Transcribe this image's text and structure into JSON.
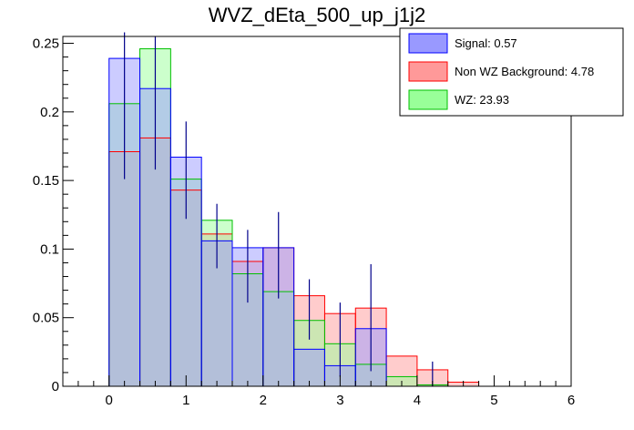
{
  "chart_data": {
    "type": "bar",
    "title": "WVZ_dEta_500_up_j1j2",
    "xlabel": "",
    "ylabel": "",
    "xlim": [
      -0.6,
      6.0
    ],
    "ylim": [
      0,
      0.255
    ],
    "bin_edges": [
      0,
      0.4,
      0.8,
      1.2,
      1.6,
      2.0,
      2.4,
      2.8,
      3.2,
      3.6,
      4.0,
      4.4,
      4.8
    ],
    "x_ticks": [
      0,
      1,
      2,
      3,
      4,
      5,
      6
    ],
    "x_tick_labels": [
      "0",
      "1",
      "2",
      "3",
      "4",
      "5",
      "6"
    ],
    "y_ticks": [
      0,
      0.05,
      0.1,
      0.15,
      0.2,
      0.25
    ],
    "y_tick_labels": [
      "0",
      "0.05",
      "0.1",
      "0.15",
      "0.2",
      "0.25"
    ],
    "series": [
      {
        "name": "Non WZ Background",
        "legend_label": "Non WZ Background: 4.78",
        "color": "#ff9999",
        "values": [
          0.171,
          0.181,
          0.143,
          0.111,
          0.091,
          0.101,
          0.066,
          0.053,
          0.057,
          0.022,
          0.012,
          0.003
        ]
      },
      {
        "name": "WZ",
        "legend_label": "WZ: 23.93",
        "color": "#99ff99",
        "values": [
          0.206,
          0.246,
          0.151,
          0.121,
          0.082,
          0.069,
          0.048,
          0.031,
          0.016,
          0.007,
          0.001,
          0.0
        ]
      },
      {
        "name": "Signal",
        "legend_label": "Signal: 0.57",
        "color": "#9999ff",
        "values": [
          0.239,
          0.217,
          0.167,
          0.106,
          0.101,
          0.101,
          0.027,
          0.015,
          0.042,
          0.0,
          0.0,
          0.0
        ]
      }
    ],
    "error_bars": [
      {
        "x": 0.2,
        "low": 0.151,
        "high": 0.258
      },
      {
        "x": 0.6,
        "low": 0.158,
        "high": 0.255
      },
      {
        "x": 1.0,
        "low": 0.122,
        "high": 0.193
      },
      {
        "x": 1.4,
        "low": 0.086,
        "high": 0.133
      },
      {
        "x": 1.8,
        "low": 0.061,
        "high": 0.114
      },
      {
        "x": 2.2,
        "low": 0.064,
        "high": 0.127
      },
      {
        "x": 2.6,
        "low": 0.034,
        "high": 0.078
      },
      {
        "x": 3.0,
        "low": 0.007,
        "high": 0.061
      },
      {
        "x": 3.4,
        "low": 0.011,
        "high": 0.089
      },
      {
        "x": 4.2,
        "low": 0.0,
        "high": 0.018
      }
    ],
    "legend_position": "top-right"
  },
  "legend": {
    "items": [
      {
        "label": "Signal: 0.57",
        "color": "#9999ff"
      },
      {
        "label": "Non WZ Background: 4.78",
        "color": "#ff9999"
      },
      {
        "label": "WZ: 23.93",
        "color": "#99ff99"
      }
    ]
  }
}
